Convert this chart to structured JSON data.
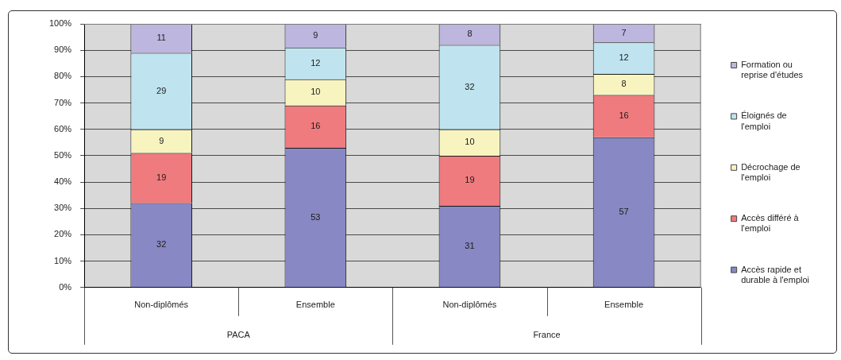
{
  "chart_data": {
    "type": "bar",
    "stacked": true,
    "categories": [
      "Non-diplômés",
      "Ensemble",
      "Non-diplômés",
      "Ensemble"
    ],
    "annotations": [
      "PACA",
      "France"
    ],
    "series": [
      {
        "name": "Accès rapide et durable à l'emploi",
        "color": "#8888c4",
        "values": [
          32,
          53,
          31,
          57
        ]
      },
      {
        "name": "Accès différé à l'emploi",
        "color": "#ef7b7e",
        "values": [
          19,
          16,
          19,
          16
        ]
      },
      {
        "name": "Décrochage de l'emploi",
        "color": "#f8f4c0",
        "values": [
          9,
          10,
          10,
          8
        ]
      },
      {
        "name": "Éloignés de l'emploi",
        "color": "#bfe4ef",
        "values": [
          29,
          12,
          32,
          12
        ]
      },
      {
        "name": "Formation ou reprise d'études",
        "color": "#bdb6de",
        "values": [
          11,
          9,
          8,
          7
        ]
      }
    ],
    "ylim": [
      0,
      100
    ],
    "yticks": [
      {
        "value": 0,
        "label": "0%"
      },
      {
        "value": 10,
        "label": "10%"
      },
      {
        "value": 20,
        "label": "20%"
      },
      {
        "value": 30,
        "label": "30%"
      },
      {
        "value": 40,
        "label": "40%"
      },
      {
        "value": 50,
        "label": "50%"
      },
      {
        "value": 60,
        "label": "60%"
      },
      {
        "value": 70,
        "label": "70%"
      },
      {
        "value": 80,
        "label": "80%"
      },
      {
        "value": 90,
        "label": "90%"
      },
      {
        "value": 100,
        "label": "100%"
      }
    ],
    "grid": "y",
    "legend": "right",
    "data_labels": true
  }
}
